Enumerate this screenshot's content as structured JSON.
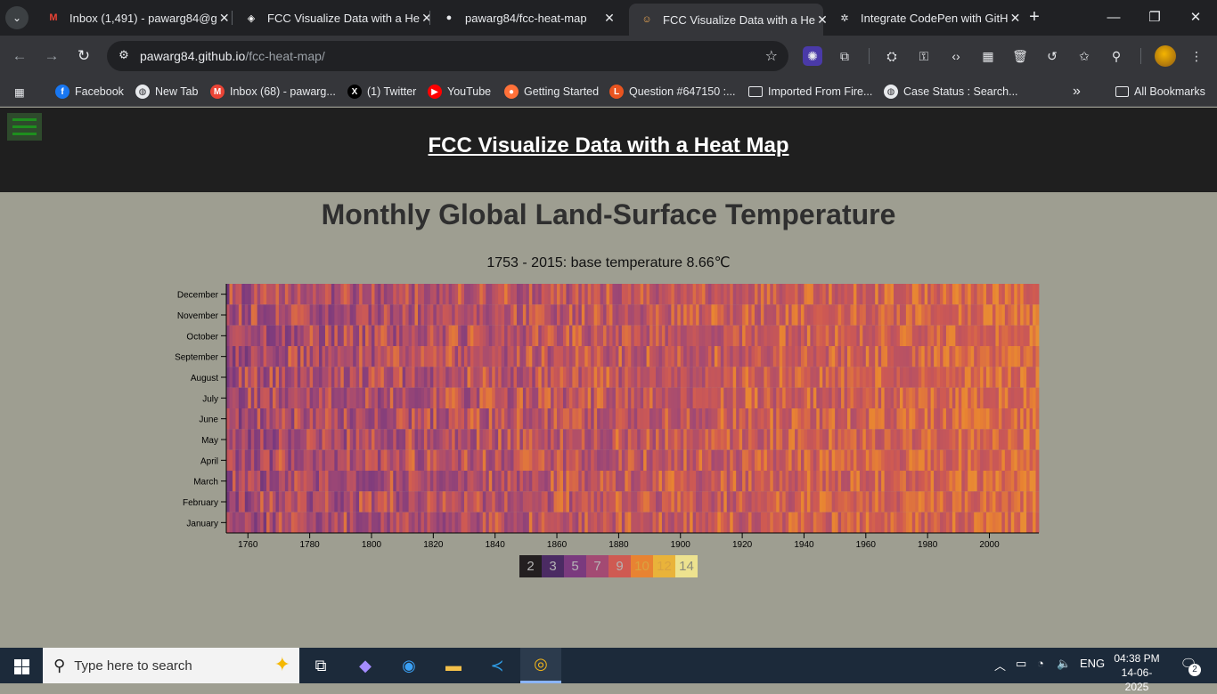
{
  "browser": {
    "tabs": [
      {
        "title": "Inbox (1,491) - pawarg84@g",
        "icon": "gmail-icon",
        "favicon_text": "M",
        "color": "#ea4335"
      },
      {
        "title": "FCC Visualize Data with a He",
        "icon": "codepen-icon",
        "favicon_text": "◈",
        "color": "#ffffff"
      },
      {
        "title": "pawarg84/fcc-heat-map",
        "icon": "github-icon",
        "favicon_text": "●",
        "color": "#e8eaed"
      },
      {
        "title": "FCC Visualize Data with a He",
        "icon": "avatar-icon",
        "favicon_text": "☺",
        "color": "#f6ad55",
        "active": true
      },
      {
        "title": "Integrate CodePen with GitH",
        "icon": "openai-icon",
        "favicon_text": "✲",
        "color": "#e8eaed"
      }
    ],
    "url_host": "pawarg84.github.io",
    "url_path": "/fcc-heat-map/",
    "bookmarks": [
      {
        "label": "Facebook",
        "icon": "facebook-icon",
        "glyph": "f",
        "color": "#1877f2"
      },
      {
        "label": "New Tab",
        "icon": "globe-icon",
        "glyph": "◍",
        "color": "#e8eaed"
      },
      {
        "label": "Inbox (68) - pawarg...",
        "icon": "gmail-icon",
        "glyph": "M",
        "color": "#ea4335"
      },
      {
        "label": "(1) Twitter",
        "icon": "x-twitter-icon",
        "glyph": "X",
        "color": "#000000"
      },
      {
        "label": "YouTube",
        "icon": "youtube-icon",
        "glyph": "▶",
        "color": "#ff0000"
      },
      {
        "label": "Getting Started",
        "icon": "firefox-icon",
        "glyph": "●",
        "color": "#ff7139"
      },
      {
        "label": "Question #647150 :...",
        "icon": "launchpad-icon",
        "glyph": "L",
        "color": "#e9541f"
      },
      {
        "label": "Imported From Fire...",
        "icon": "folder-icon",
        "glyph": "▭",
        "color": "#35363a"
      },
      {
        "label": "Case Status : Search...",
        "icon": "globe-icon",
        "glyph": "◍",
        "color": "#e8eaed"
      }
    ],
    "all_bookmarks": "All Bookmarks"
  },
  "page": {
    "header_title": "FCC Visualize Data with a Heat Map",
    "chart_title": "Monthly Global Land-Surface Temperature",
    "chart_subtitle": "1753 - 2015: base temperature 8.66℃"
  },
  "chart_data": {
    "type": "heatmap",
    "title": "Monthly Global Land-Surface Temperature",
    "subtitle": "1753 - 2015: base temperature 8.66℃",
    "base_temperature": 8.66,
    "x_range": [
      1753,
      2015
    ],
    "x_ticks": [
      1760,
      1780,
      1800,
      1820,
      1840,
      1860,
      1880,
      1900,
      1920,
      1940,
      1960,
      1980,
      2000
    ],
    "y_categories": [
      "December",
      "November",
      "October",
      "September",
      "August",
      "July",
      "June",
      "May",
      "April",
      "March",
      "February",
      "January"
    ],
    "legend_values": [
      2,
      3,
      5,
      7,
      9,
      10,
      12,
      14
    ],
    "legend_colors": [
      "#231f20",
      "#4b2b63",
      "#7a3a7e",
      "#a34a73",
      "#cf5a52",
      "#e88332",
      "#e9b33a",
      "#ede28f"
    ]
  },
  "taskbar": {
    "search_placeholder": "Type here to search",
    "language": "ENG",
    "time": "04:38 PM",
    "date": "14-06-2025",
    "notification_count": "2"
  }
}
